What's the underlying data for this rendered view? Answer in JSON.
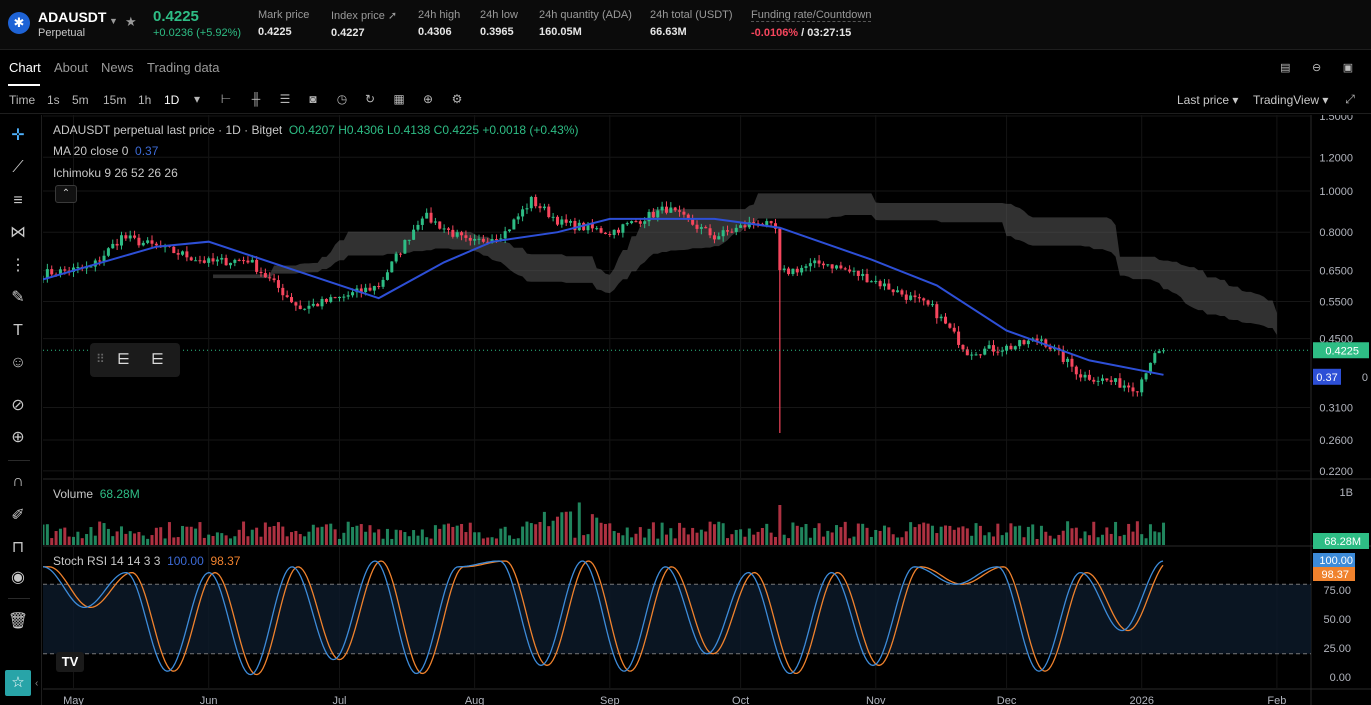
{
  "header": {
    "symbol": "ADAUSDT",
    "contract": "Perpetual",
    "coin_icon": "cardano-icon",
    "last_price": "0.4225",
    "change": "+0.0236 (+5.92%)",
    "stats": [
      {
        "label": "Mark price",
        "value": "0.4225"
      },
      {
        "label": "Index price",
        "value": "0.4227"
      },
      {
        "label": "24h high",
        "value": "0.4306"
      },
      {
        "label": "24h low",
        "value": "0.3965"
      },
      {
        "label": "24h quantity (ADA)",
        "value": "160.05M"
      },
      {
        "label": "24h total (USDT)",
        "value": "66.63M"
      }
    ],
    "funding_label": "Funding rate/Countdown",
    "funding_rate": "-0.0106%",
    "countdown": "/ 03:27:15"
  },
  "tabs": [
    "Chart",
    "About",
    "News",
    "Trading data"
  ],
  "toolbar": {
    "time_label": "Time",
    "intervals": [
      "1s",
      "5m",
      "15m",
      "1h",
      "1D"
    ],
    "active_interval": "1D",
    "price_type": "Last price",
    "chart_mode": "TradingView"
  },
  "legend": {
    "title": "ADAUSDT perpetual last price · 1D · Bitget",
    "ohlc": "O0.4207  H0.4306  L0.4138  C0.4225  +0.0018 (+0.43%)",
    "ma_label": "MA 20 close 0",
    "ma_value": "0.37",
    "ichimoku_label": "Ichimoku 9 26 52 26 26",
    "volume_label": "Volume",
    "volume_value": "68.28M",
    "stoch_label": "Stoch RSI 14 14 3 3",
    "stoch_k": "100.00",
    "stoch_d": "98.37"
  },
  "colors": {
    "up": "#2ebd85",
    "down": "#f6465d",
    "ma": "#2d4fd6",
    "cloud": "#5a5a5a",
    "stoch_k": "#3d8bd9",
    "stoch_d": "#f0822d"
  },
  "chart_data": {
    "type": "candlestick",
    "price_axis_labels": [
      "1.5000",
      "1.2000",
      "1.0000",
      "0.8000",
      "0.6500",
      "0.5500",
      "0.4500",
      "0.3100",
      "0.2600",
      "0.2200"
    ],
    "price_axis_partial_label": "0",
    "price_tags": {
      "last": "0.4225",
      "ma": "0.37"
    },
    "volume_axis_labels": [
      "1B"
    ],
    "volume_tag": "68.28M",
    "stoch_axis_labels": [
      "75.00",
      "50.00",
      "25.00",
      "0.00"
    ],
    "stoch_tags": {
      "k": "100.00",
      "d": "98.37"
    },
    "x_labels": [
      "May",
      "Jun",
      "Jul",
      "Aug",
      "Sep",
      "Oct",
      "Nov",
      "Dec",
      "2026",
      "Feb"
    ],
    "close_key_points": [
      {
        "date": "2025-04-24",
        "close": 0.64
      },
      {
        "date": "2025-05-05",
        "close": 0.66
      },
      {
        "date": "2025-05-12",
        "close": 0.78
      },
      {
        "date": "2025-05-20",
        "close": 0.74
      },
      {
        "date": "2025-06-01",
        "close": 0.68
      },
      {
        "date": "2025-06-10",
        "close": 0.69
      },
      {
        "date": "2025-06-22",
        "close": 0.53
      },
      {
        "date": "2025-07-01",
        "close": 0.56
      },
      {
        "date": "2025-07-10",
        "close": 0.6
      },
      {
        "date": "2025-07-20",
        "close": 0.88
      },
      {
        "date": "2025-07-31",
        "close": 0.75
      },
      {
        "date": "2025-08-08",
        "close": 0.8
      },
      {
        "date": "2025-08-14",
        "close": 0.95
      },
      {
        "date": "2025-08-21",
        "close": 0.84
      },
      {
        "date": "2025-09-01",
        "close": 0.8
      },
      {
        "date": "2025-09-14",
        "close": 0.91
      },
      {
        "date": "2025-09-25",
        "close": 0.78
      },
      {
        "date": "2025-10-05",
        "close": 0.85
      },
      {
        "date": "2025-10-09",
        "close": 0.81
      },
      {
        "date": "2025-10-10",
        "close": 0.64
      },
      {
        "date": "2025-10-20",
        "close": 0.68
      },
      {
        "date": "2025-10-31",
        "close": 0.62
      },
      {
        "date": "2025-11-14",
        "close": 0.53
      },
      {
        "date": "2025-11-22",
        "close": 0.42
      },
      {
        "date": "2025-12-02",
        "close": 0.43
      },
      {
        "date": "2025-12-09",
        "close": 0.45
      },
      {
        "date": "2025-12-18",
        "close": 0.37
      },
      {
        "date": "2025-12-31",
        "close": 0.345
      },
      {
        "date": "2026-01-03",
        "close": 0.4
      },
      {
        "date": "2026-01-06",
        "close": 0.4225
      }
    ],
    "spike_low": {
      "date": "2025-10-10",
      "low": 0.27
    },
    "ma20": [
      {
        "date": "2025-04-24",
        "value": 0.62
      },
      {
        "date": "2025-05-20",
        "value": 0.74
      },
      {
        "date": "2025-06-01",
        "value": 0.76
      },
      {
        "date": "2025-06-25",
        "value": 0.63
      },
      {
        "date": "2025-07-10",
        "value": 0.56
      },
      {
        "date": "2025-07-25",
        "value": 0.68
      },
      {
        "date": "2025-08-05",
        "value": 0.76
      },
      {
        "date": "2025-08-20",
        "value": 0.8
      },
      {
        "date": "2025-09-01",
        "value": 0.86
      },
      {
        "date": "2025-09-25",
        "value": 0.86
      },
      {
        "date": "2025-10-10",
        "value": 0.82
      },
      {
        "date": "2025-10-31",
        "value": 0.69
      },
      {
        "date": "2025-11-15",
        "value": 0.6
      },
      {
        "date": "2025-12-01",
        "value": 0.47
      },
      {
        "date": "2025-12-20",
        "value": 0.4
      },
      {
        "date": "2026-01-06",
        "value": 0.37
      }
    ],
    "stoch_k_key_points": [
      95,
      60,
      90,
      5,
      90,
      2,
      95,
      15,
      100,
      3,
      95,
      100,
      10,
      100,
      5,
      95,
      20,
      90,
      3,
      90,
      10,
      95,
      80,
      95,
      5,
      90,
      40,
      100
    ]
  }
}
